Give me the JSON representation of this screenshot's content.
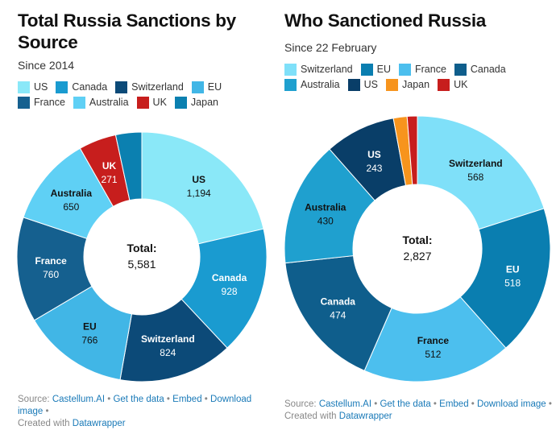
{
  "chart_data": [
    {
      "type": "pie",
      "title": "Total Russia Sanctions by Source",
      "subtitle": "Since 2014",
      "total_label": "Total:",
      "total_value": "5,581",
      "categories": [
        "US",
        "Canada",
        "Switzerland",
        "EU",
        "France",
        "Australia",
        "UK",
        "Japan"
      ],
      "values": [
        1194,
        928,
        824,
        766,
        760,
        650,
        271,
        188
      ],
      "value_labels": [
        "1,194",
        "928",
        "824",
        "766",
        "760",
        "650",
        "271",
        ""
      ],
      "colors": [
        "#8ae8f8",
        "#1a9bd0",
        "#0c4a78",
        "#41b6e6",
        "#15608f",
        "#5fd0f5",
        "#c71e1d",
        "#0b80b0"
      ],
      "text_dark": [
        true,
        false,
        false,
        true,
        false,
        true,
        false,
        false
      ],
      "legend": [
        "US",
        "Canada",
        "Switzerland",
        "EU",
        "France",
        "Australia",
        "UK",
        "Japan"
      ]
    },
    {
      "type": "pie",
      "title": "Who Sanctioned Russia",
      "subtitle": "Since 22 February",
      "total_label": "Total:",
      "total_value": "2,827",
      "categories": [
        "Switzerland",
        "EU",
        "France",
        "Canada",
        "Australia",
        "US",
        "Japan",
        "UK"
      ],
      "values": [
        568,
        518,
        512,
        474,
        430,
        243,
        47,
        35
      ],
      "value_labels": [
        "568",
        "518",
        "512",
        "474",
        "430",
        "243",
        "",
        ""
      ],
      "colors": [
        "#7fe0f9",
        "#0a7eb0",
        "#4cbfee",
        "#0f5e8c",
        "#1fa0cf",
        "#093e68",
        "#f7941d",
        "#c71e1d"
      ],
      "text_dark": [
        true,
        false,
        true,
        false,
        true,
        false,
        false,
        false
      ],
      "legend": [
        "Switzerland",
        "EU",
        "France",
        "Canada",
        "Australia",
        "US",
        "Japan",
        "UK"
      ]
    }
  ],
  "footer": {
    "source_prefix": "Source:",
    "source": "Castellum.AI",
    "sep": "•",
    "get_data": "Get the data",
    "embed": "Embed",
    "download": "Download image",
    "created": "Created with",
    "datawrapper": "Datawrapper"
  }
}
